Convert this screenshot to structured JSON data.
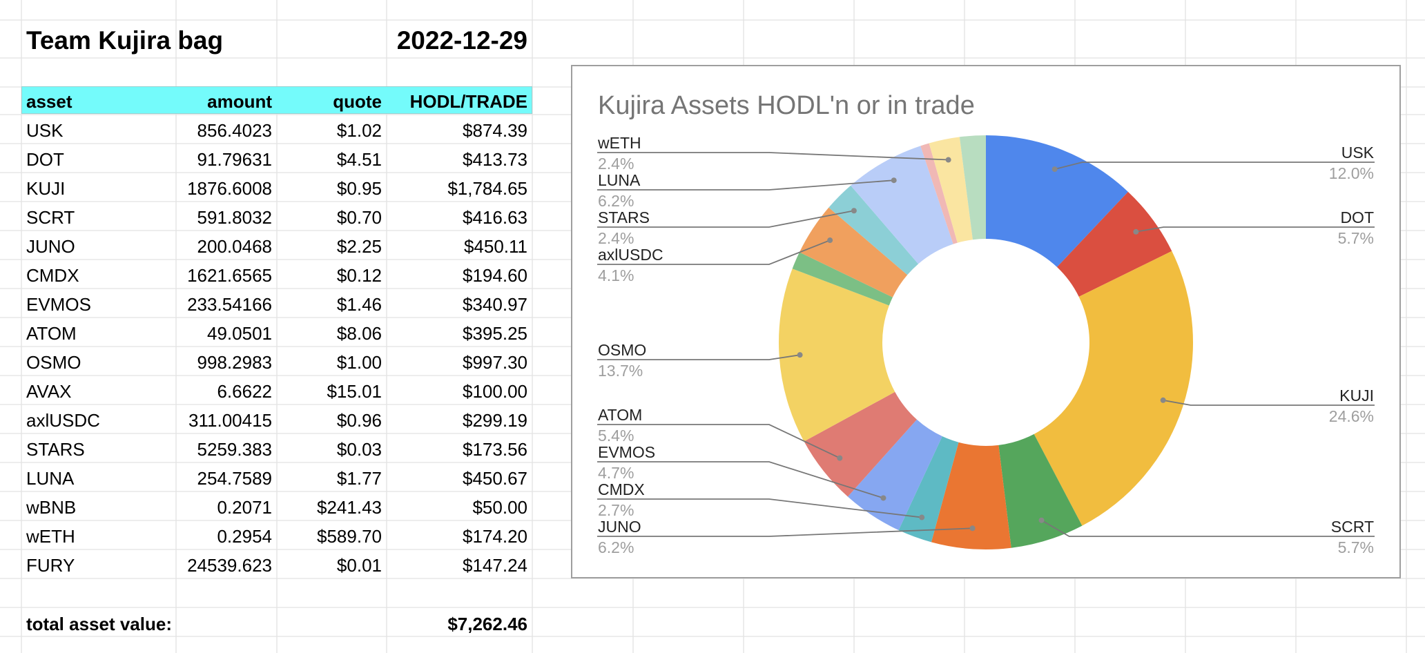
{
  "sheet": {
    "title": "Team Kujira bag",
    "date": "2022-12-29",
    "headers": [
      "asset",
      "amount",
      "quote",
      "HODL/TRADE"
    ],
    "rows": [
      [
        "USK",
        "856.4023",
        "$1.02",
        "$874.39"
      ],
      [
        "DOT",
        "91.79631",
        "$4.51",
        "$413.73"
      ],
      [
        "KUJI",
        "1876.6008",
        "$0.95",
        "$1,784.65"
      ],
      [
        "SCRT",
        "591.8032",
        "$0.70",
        "$416.63"
      ],
      [
        "JUNO",
        "200.0468",
        "$2.25",
        "$450.11"
      ],
      [
        "CMDX",
        "1621.6565",
        "$0.12",
        "$194.60"
      ],
      [
        "EVMOS",
        "233.54166",
        "$1.46",
        "$340.97"
      ],
      [
        "ATOM",
        "49.0501",
        "$8.06",
        "$395.25"
      ],
      [
        "OSMO",
        "998.2983",
        "$1.00",
        "$997.30"
      ],
      [
        "AVAX",
        "6.6622",
        "$15.01",
        "$100.00"
      ],
      [
        "axlUSDC",
        "311.00415",
        "$0.96",
        "$299.19"
      ],
      [
        "STARS",
        "5259.383",
        "$0.03",
        "$173.56"
      ],
      [
        "LUNA",
        "254.7589",
        "$1.77",
        "$450.67"
      ],
      [
        "wBNB",
        "0.2071",
        "$241.43",
        "$50.00"
      ],
      [
        "wETH",
        "0.2954",
        "$589.70",
        "$174.20"
      ],
      [
        "FURY",
        "24539.623",
        "$0.01",
        "$147.24"
      ]
    ],
    "total_label": "total asset value:",
    "total_value": "$7,262.46"
  },
  "colors": {
    "header_fill": "#74fbfb",
    "grid": "#e2e2e2"
  },
  "chart_data": {
    "type": "pie",
    "donut": true,
    "title": "Kujira Assets HODL'n or in trade",
    "legend": "none",
    "categories": [
      "USK",
      "DOT",
      "KUJI",
      "SCRT",
      "JUNO",
      "CMDX",
      "EVMOS",
      "ATOM",
      "OSMO",
      "AVAX",
      "axlUSDC",
      "STARS",
      "LUNA",
      "wBNB",
      "wETH",
      "FURY"
    ],
    "values": [
      874.39,
      413.73,
      1784.65,
      416.63,
      450.11,
      194.6,
      340.97,
      395.25,
      997.3,
      100.0,
      299.19,
      173.56,
      450.67,
      50.0,
      174.2,
      147.24
    ],
    "colors": [
      "#4f87ec",
      "#da4f40",
      "#f1bd3f",
      "#55a65c",
      "#ea7632",
      "#5ebac4",
      "#86a7f1",
      "#df7b73",
      "#f3d263",
      "#7cbf85",
      "#f0a05e",
      "#8ccfd6",
      "#b9cdf8",
      "#f0b8b5",
      "#fae5a1",
      "#b8ddc0"
    ],
    "labels": [
      {
        "name": "USK",
        "pct": "12.0%"
      },
      {
        "name": "DOT",
        "pct": "5.7%"
      },
      {
        "name": "KUJI",
        "pct": "24.6%"
      },
      {
        "name": "SCRT",
        "pct": "5.7%"
      },
      {
        "name": "JUNO",
        "pct": "6.2%"
      },
      {
        "name": "CMDX",
        "pct": "2.7%"
      },
      {
        "name": "EVMOS",
        "pct": "4.7%"
      },
      {
        "name": "ATOM",
        "pct": "5.4%"
      },
      {
        "name": "OSMO",
        "pct": "13.7%"
      },
      {
        "name": "axlUSDC",
        "pct": "4.1%"
      },
      {
        "name": "STARS",
        "pct": "2.4%"
      },
      {
        "name": "LUNA",
        "pct": "6.2%"
      },
      {
        "name": "wETH",
        "pct": "2.4%"
      }
    ]
  }
}
